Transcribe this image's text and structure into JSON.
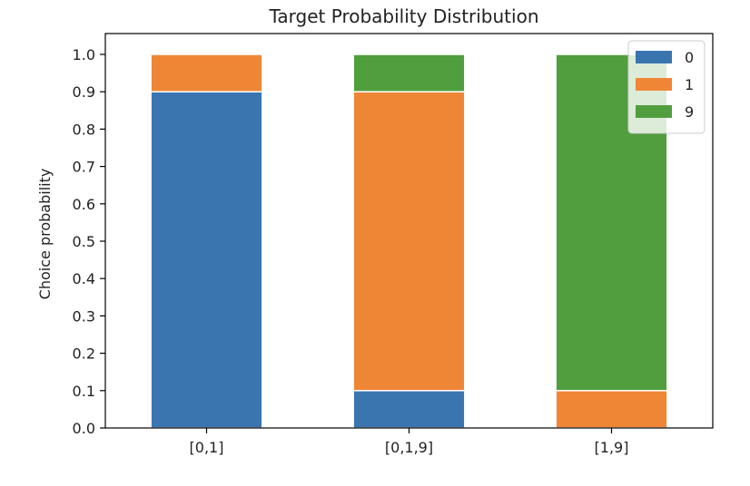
{
  "chart_data": {
    "type": "bar",
    "stacked": true,
    "title": "Target Probability Distribution",
    "xlabel": "",
    "ylabel": "Choice probability",
    "ylim": [
      0,
      1.05
    ],
    "yticks": [
      "0.0",
      "0.1",
      "0.2",
      "0.3",
      "0.4",
      "0.5",
      "0.6",
      "0.7",
      "0.8",
      "0.9",
      "1.0"
    ],
    "categories": [
      "[0,1]",
      "[0,1,9]",
      "[1,9]"
    ],
    "series": [
      {
        "name": "0",
        "color": "#3a75af",
        "values": [
          0.9,
          0.1,
          0.0
        ]
      },
      {
        "name": "1",
        "color": "#ef8636",
        "values": [
          0.1,
          0.8,
          0.1
        ]
      },
      {
        "name": "9",
        "color": "#519e3e",
        "values": [
          0.0,
          0.1,
          0.9
        ]
      }
    ],
    "legend": "top-right",
    "grid": false
  }
}
